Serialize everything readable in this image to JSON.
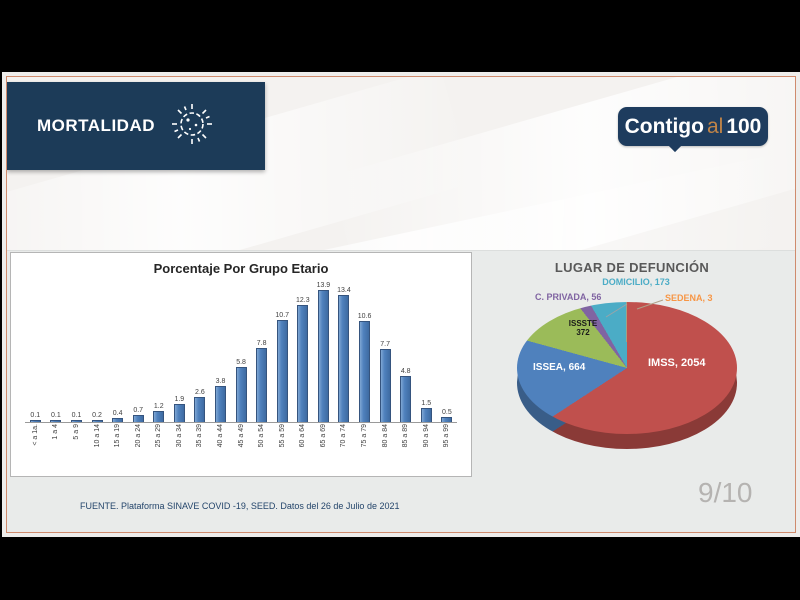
{
  "header": {
    "title": "MORTALIDAD"
  },
  "logo": {
    "contigo": "Contigo",
    "al": "al",
    "num": "100"
  },
  "footer": {
    "source": "FUENTE. Plataforma SINAVE COVID -19, SEED. Datos del 26 de Julio de 2021",
    "page": "9/10"
  },
  "colors": {
    "header_navy": "#1c3b58",
    "logo_navy": "#1e3c5e",
    "logo_accent_orange": "#c08448",
    "slide_border": "#cf8b6d",
    "bar_blue": "#4f81bd",
    "pie_red": "#c0504d",
    "pie_blue": "#4f81bd",
    "pie_green": "#9bbb59",
    "pie_purple": "#8064a2",
    "pie_cyan": "#4bacc6",
    "pie_orange": "#f79646"
  },
  "chart_data": [
    {
      "type": "bar",
      "title": "Porcentaje Por Grupo Etario",
      "categories": [
        "< a 1a.",
        "1 a 4",
        "5 a 9",
        "10 a 14",
        "15 a 19",
        "20 a 24",
        "25 a 29",
        "30 a 34",
        "35 a 39",
        "40 a 44",
        "45 a 49",
        "50 a 54",
        "55 a 59",
        "60 a 64",
        "65 a 69",
        "70 a 74",
        "75 a 79",
        "80 a 84",
        "85 a 89",
        "90 a 94",
        "95 a 99"
      ],
      "values": [
        0.1,
        0.1,
        0.1,
        0.2,
        0.4,
        0.7,
        1.2,
        1.9,
        2.6,
        3.8,
        5.8,
        7.8,
        10.7,
        12.3,
        13.9,
        13.4,
        10.6,
        7.7,
        4.8,
        1.5,
        0.5
      ],
      "xlabel": "",
      "ylabel": "",
      "ylim": [
        0,
        14
      ],
      "value_labels": true,
      "grid": false,
      "legend": false,
      "bar_color": "#4f81bd"
    },
    {
      "type": "pie",
      "title": "LUGAR DE DEFUNCIÓN",
      "legend": false,
      "style": "3d",
      "slices": [
        {
          "name": "IMSS",
          "value": 2054,
          "label": "IMSS, 2054",
          "color": "#c0504d",
          "label_color": "#ffffff"
        },
        {
          "name": "ISSEA",
          "value": 664,
          "label": "ISSEA, 664",
          "color": "#4f81bd",
          "label_color": "#ffffff"
        },
        {
          "name": "ISSSTE",
          "value": 372,
          "label": "ISSSTE 372",
          "color": "#9bbb59",
          "label_color": "#1a1a1a"
        },
        {
          "name": "C. PRIVADA",
          "value": 56,
          "label": "C. PRIVADA, 56",
          "color": "#8064a2",
          "label_color": "#8064a2"
        },
        {
          "name": "DOMICILIO",
          "value": 173,
          "label": "DOMICILIO, 173",
          "color": "#4bacc6",
          "label_color": "#4bacc6"
        },
        {
          "name": "SEDENA",
          "value": 3,
          "label": "SEDENA, 3",
          "color": "#f79646",
          "label_color": "#f79646"
        }
      ]
    }
  ]
}
